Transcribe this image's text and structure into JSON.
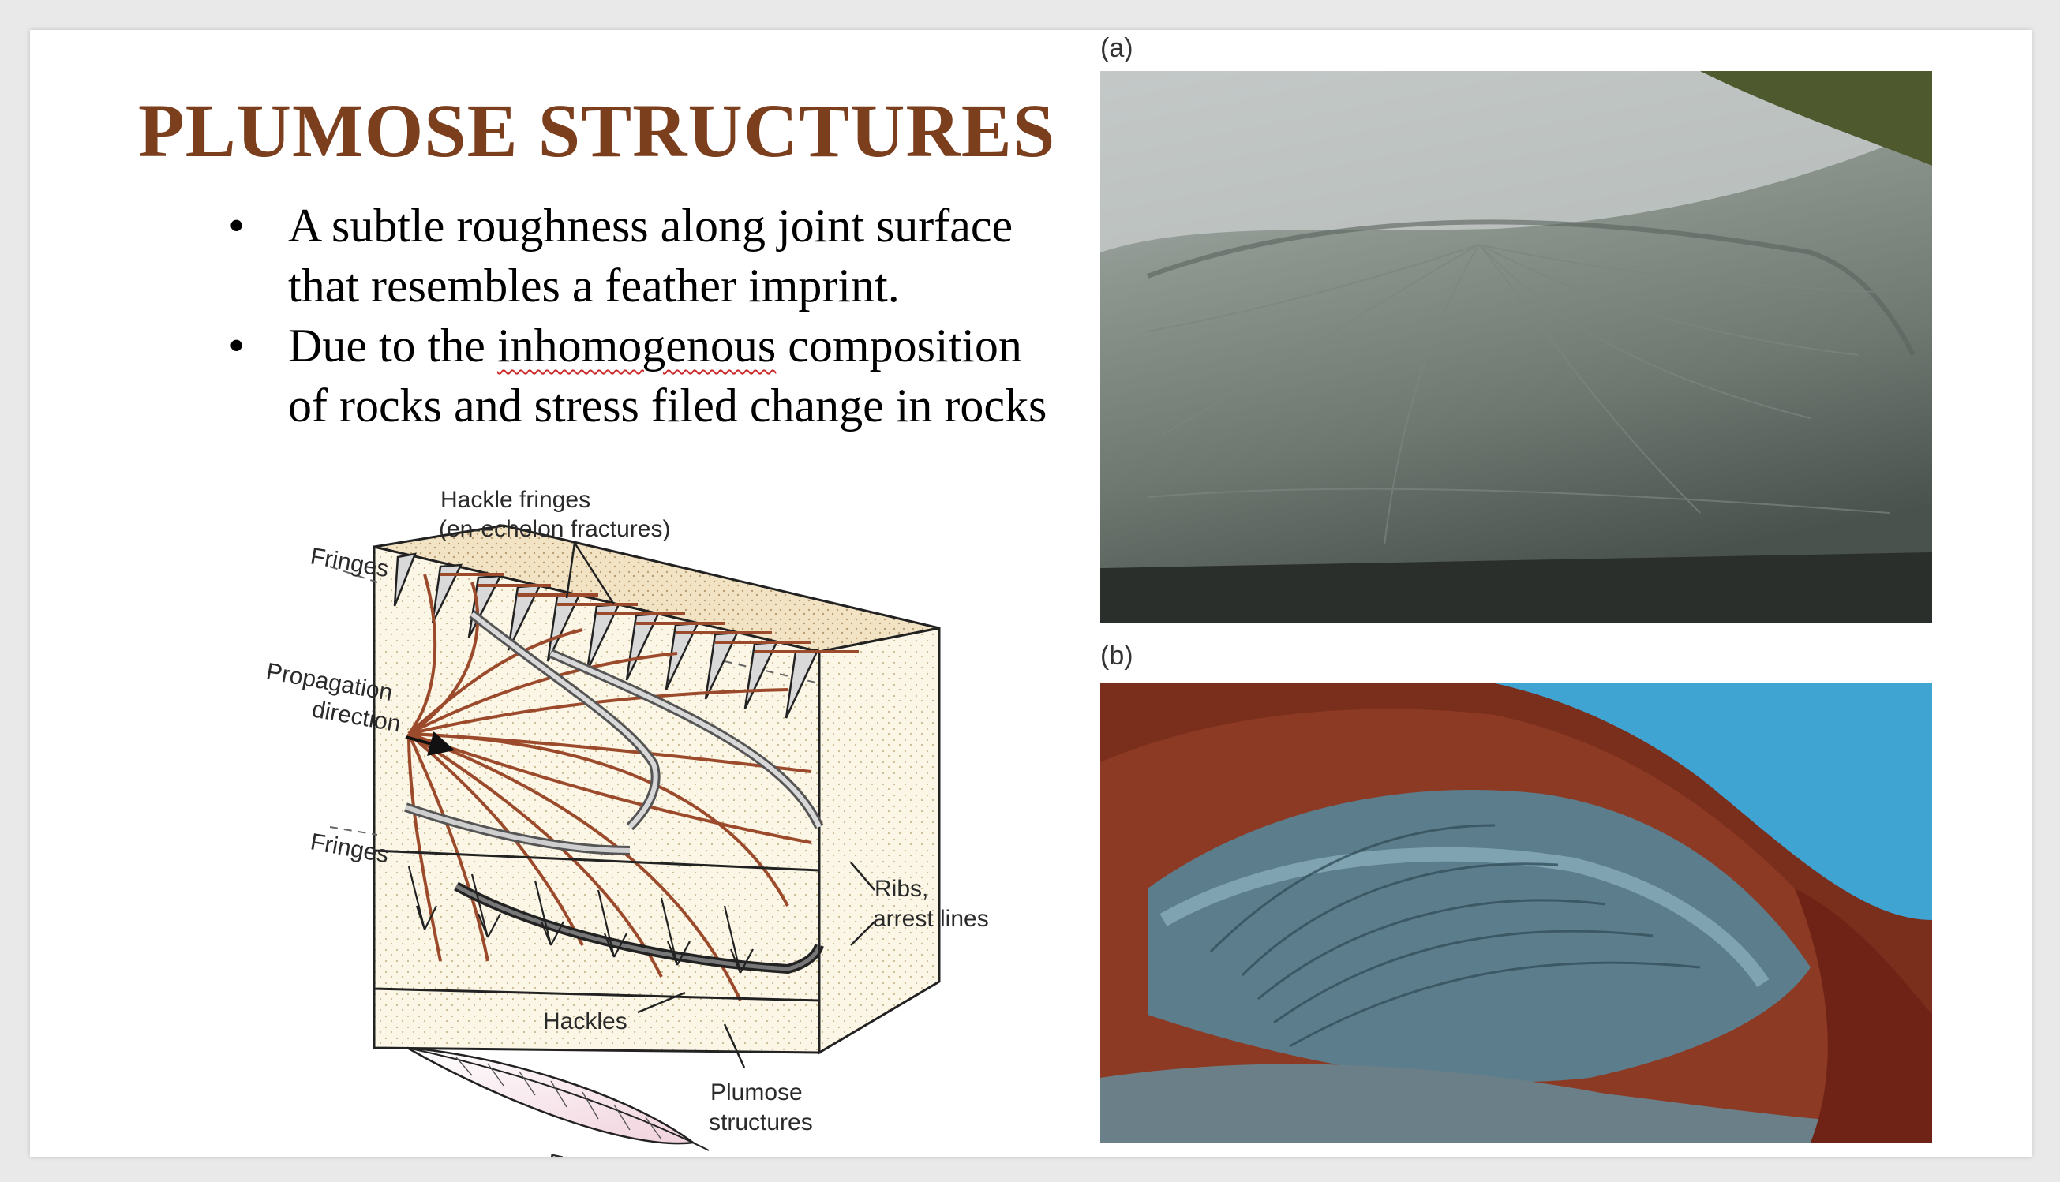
{
  "slide": {
    "title": "PLUMOSE STRUCTURES",
    "bullets": [
      {
        "symbol": "•",
        "line1": "A subtle roughness along joint surface",
        "line2": "that resembles a feather imprint."
      },
      {
        "symbol": "•",
        "line1_pre": "Due to the ",
        "line1_flag": "inhomogenous",
        "line1_post": " composition",
        "line2": "of rocks and stress filed change in rocks"
      }
    ]
  },
  "diagram": {
    "labels": {
      "hackle_fringes_1": "Hackle fringes",
      "hackle_fringes_2": "(en-echelon fractures)",
      "fringes_top": "Fringes",
      "propagation_1": "Propagation",
      "propagation_2": "direction",
      "fringes_bottom": "Fringes",
      "ribs_1": "Ribs,",
      "ribs_2": "arrest lines",
      "hackles": "Hackles",
      "plumose_1": "Plumose",
      "plumose_2": "structures",
      "feather": "Feather"
    }
  },
  "photos": {
    "a": {
      "caption": "(a)"
    },
    "b": {
      "caption": "(b)"
    }
  },
  "colors": {
    "title": "#7b3f1d",
    "hackle": "#9c4a2c",
    "block_face": "#fbf6e6",
    "sky": "#3fa4d2"
  }
}
